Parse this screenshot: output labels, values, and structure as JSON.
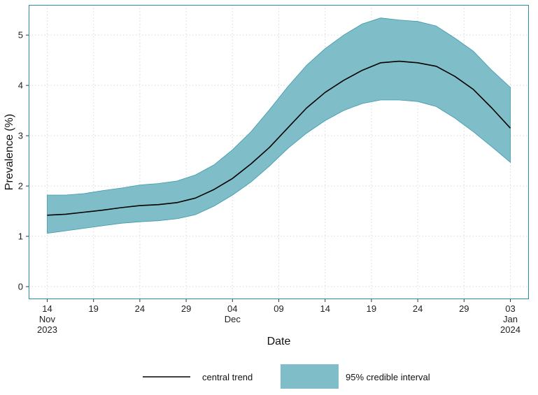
{
  "chart_data": {
    "type": "area",
    "xlabel": "Date",
    "ylabel": "Prevalence (%)",
    "x_range": [
      "2023-11-12",
      "2024-01-05"
    ],
    "ylim": [
      -0.25,
      5.6
    ],
    "y_ticks": [
      0,
      1,
      2,
      3,
      4,
      5
    ],
    "x_ticks": [
      {
        "date": "2023-11-14",
        "lines": [
          "14",
          "Nov",
          "2023"
        ]
      },
      {
        "date": "2023-11-19",
        "lines": [
          "19"
        ]
      },
      {
        "date": "2023-11-24",
        "lines": [
          "24"
        ]
      },
      {
        "date": "2023-11-29",
        "lines": [
          "29"
        ]
      },
      {
        "date": "2023-12-04",
        "lines": [
          "04",
          "Dec"
        ]
      },
      {
        "date": "2023-12-09",
        "lines": [
          "09"
        ]
      },
      {
        "date": "2023-12-14",
        "lines": [
          "14"
        ]
      },
      {
        "date": "2023-12-19",
        "lines": [
          "19"
        ]
      },
      {
        "date": "2023-12-24",
        "lines": [
          "24"
        ]
      },
      {
        "date": "2023-12-29",
        "lines": [
          "29"
        ]
      },
      {
        "date": "2024-01-03",
        "lines": [
          "03",
          "Jan",
          "2024"
        ]
      }
    ],
    "grid": "dotted",
    "legend_position": "bottom",
    "series": [
      {
        "name": "central trend",
        "kind": "line",
        "color": "#000000",
        "points": [
          [
            "2023-11-14",
            1.42
          ],
          [
            "2023-11-16",
            1.44
          ],
          [
            "2023-11-18",
            1.48
          ],
          [
            "2023-11-20",
            1.52
          ],
          [
            "2023-11-22",
            1.57
          ],
          [
            "2023-11-24",
            1.61
          ],
          [
            "2023-11-26",
            1.63
          ],
          [
            "2023-11-28",
            1.67
          ],
          [
            "2023-11-30",
            1.76
          ],
          [
            "2023-12-02",
            1.93
          ],
          [
            "2023-12-04",
            2.15
          ],
          [
            "2023-12-06",
            2.44
          ],
          [
            "2023-12-08",
            2.77
          ],
          [
            "2023-12-10",
            3.16
          ],
          [
            "2023-12-12",
            3.55
          ],
          [
            "2023-12-14",
            3.86
          ],
          [
            "2023-12-16",
            4.1
          ],
          [
            "2023-12-18",
            4.3
          ],
          [
            "2023-12-20",
            4.45
          ],
          [
            "2023-12-22",
            4.48
          ],
          [
            "2023-12-24",
            4.45
          ],
          [
            "2023-12-26",
            4.38
          ],
          [
            "2023-12-28",
            4.18
          ],
          [
            "2023-12-30",
            3.92
          ],
          [
            "2024-01-01",
            3.55
          ],
          [
            "2024-01-03",
            3.15
          ]
        ]
      },
      {
        "name": "95% credible interval",
        "kind": "band",
        "color": "#7fbdc9",
        "edge_color": "#3b9aaa",
        "points": [
          [
            "2023-11-14",
            1.06,
            1.82
          ],
          [
            "2023-11-16",
            1.11,
            1.82
          ],
          [
            "2023-11-18",
            1.16,
            1.85
          ],
          [
            "2023-11-20",
            1.21,
            1.91
          ],
          [
            "2023-11-22",
            1.26,
            1.96
          ],
          [
            "2023-11-24",
            1.29,
            2.02
          ],
          [
            "2023-11-26",
            1.31,
            2.05
          ],
          [
            "2023-11-28",
            1.35,
            2.1
          ],
          [
            "2023-11-30",
            1.43,
            2.22
          ],
          [
            "2023-12-02",
            1.6,
            2.42
          ],
          [
            "2023-12-04",
            1.82,
            2.72
          ],
          [
            "2023-12-06",
            2.08,
            3.08
          ],
          [
            "2023-12-08",
            2.4,
            3.52
          ],
          [
            "2023-12-10",
            2.75,
            3.98
          ],
          [
            "2023-12-12",
            3.05,
            4.4
          ],
          [
            "2023-12-14",
            3.3,
            4.73
          ],
          [
            "2023-12-16",
            3.5,
            5.0
          ],
          [
            "2023-12-18",
            3.64,
            5.22
          ],
          [
            "2023-12-20",
            3.71,
            5.34
          ],
          [
            "2023-12-22",
            3.71,
            5.3
          ],
          [
            "2023-12-24",
            3.68,
            5.27
          ],
          [
            "2023-12-26",
            3.58,
            5.18
          ],
          [
            "2023-12-28",
            3.35,
            4.94
          ],
          [
            "2023-12-30",
            3.08,
            4.68
          ],
          [
            "2024-01-01",
            2.78,
            4.3
          ],
          [
            "2024-01-03",
            2.47,
            3.96
          ]
        ]
      }
    ]
  },
  "legend": {
    "line_label": "central trend",
    "band_label": "95% credible interval"
  },
  "colors": {
    "panel_border": "#2a8fa0",
    "grid": "#d8d8d8"
  }
}
